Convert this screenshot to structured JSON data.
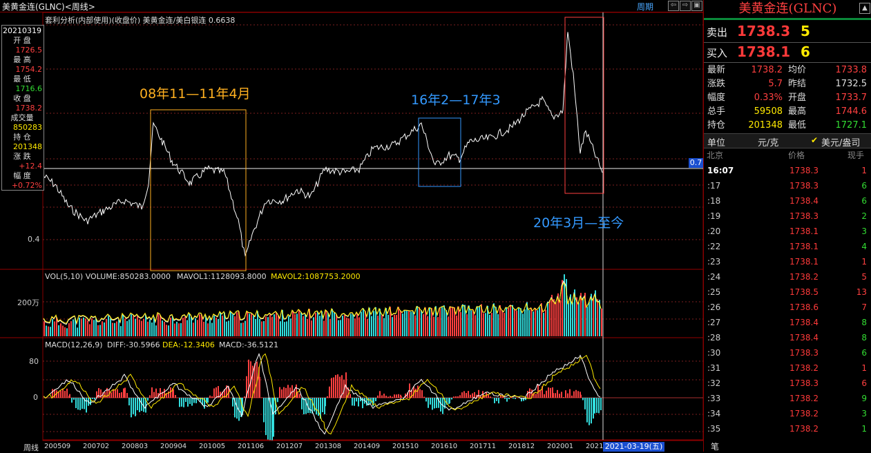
{
  "window": {
    "title": "美黄金连(GLNC)<周线>",
    "period_button": "周期",
    "nav_buttons": [
      "⇦",
      "⇨",
      "▣"
    ]
  },
  "info_panel": {
    "date": "20210319",
    "rows": [
      {
        "label": "开 盘",
        "value": "1726.5",
        "color": "#ff4040"
      },
      {
        "label": "最 高",
        "value": "1754.2",
        "color": "#ff4040"
      },
      {
        "label": "最 低",
        "value": "1716.6",
        "color": "#33dd33"
      },
      {
        "label": "收 盘",
        "value": "1738.2",
        "color": "#ff4040"
      },
      {
        "label": "成交量",
        "value": "850283",
        "color": "#ffea00"
      },
      {
        "label": "持 仓",
        "value": "201348",
        "color": "#ffea00"
      },
      {
        "label": "涨 跌",
        "value": "+12.4",
        "color": "#ff4040"
      },
      {
        "label": "幅 度",
        "value": "+0.72%",
        "color": "#ff4040"
      }
    ]
  },
  "main_chart": {
    "header": "套利分析(内部使用)(收盘价) 美黄金连/美白银连   0.6638",
    "y_label_low": "0.4",
    "current_tag": "0.7",
    "annotations": [
      {
        "text": "08年11—11年4月",
        "color": "#ffb020"
      },
      {
        "text": "16年2—17年3",
        "color": "#3399ff"
      },
      {
        "text": "20年3月—至今",
        "color": "#3399ff"
      }
    ]
  },
  "volume_chart": {
    "header_vol": "VOL(5,10) VOLUME:850283.0000",
    "header_mavol1": "MAVOL1:1128093.8000",
    "header_mavol2": "MAVOL2:1087753.2000",
    "y_label": "200万"
  },
  "macd_chart": {
    "header_name": "MACD(12,26,9)",
    "diff": "DIFF:-30.5966",
    "dea": "DEA:-12.3406",
    "macd": "MACD:-36.5121",
    "y_labels": [
      "80",
      "0"
    ]
  },
  "x_axis": {
    "corner_label": "周线",
    "ticks": [
      "200509",
      "200702",
      "200803",
      "200904",
      "201005",
      "201106",
      "201207",
      "201308",
      "201409",
      "201510",
      "201610",
      "201711",
      "201812",
      "202001",
      "20210"
    ],
    "date_flag": "2021-03-19(五)"
  },
  "quote_panel": {
    "name": "美黄金连(GLNC)",
    "sell": {
      "label": "卖出",
      "price": "1738.3",
      "volume": "5"
    },
    "buy": {
      "label": "买入",
      "price": "1738.1",
      "volume": "6"
    },
    "stats": [
      {
        "l1": "最新",
        "v1": "1738.2",
        "c1": "#ff4040",
        "l2": "均价",
        "v2": "1733.8",
        "c2": "#ff4040"
      },
      {
        "l1": "涨跌",
        "v1": "5.7",
        "c1": "#ff4040",
        "l2": "昨结",
        "v2": "1732.5",
        "c2": "#ddd"
      },
      {
        "l1": "幅度",
        "v1": "0.33%",
        "c1": "#ff4040",
        "l2": "开盘",
        "v2": "1733.7",
        "c2": "#ff4040"
      },
      {
        "l1": "总手",
        "v1": "59508",
        "c1": "#ffea00",
        "l2": "最高",
        "v2": "1744.6",
        "c2": "#ff4040"
      },
      {
        "l1": "持仓",
        "v1": "201348",
        "c1": "#ffea00",
        "l2": "最低",
        "v2": "1727.1",
        "c2": "#33dd33"
      }
    ],
    "unit_label": "单位",
    "unit_value": "元/克",
    "unit_option": "美元/盎司",
    "tick_header": {
      "time": "北京",
      "price": "价格",
      "volume": "现手"
    },
    "ticks": [
      {
        "time": "16:07",
        "price": "1738.3",
        "vol": "1",
        "vc": "#ff4040"
      },
      {
        "time": ":17",
        "price": "1738.3",
        "vol": "6",
        "vc": "#33dd33"
      },
      {
        "time": ":18",
        "price": "1738.4",
        "vol": "6",
        "vc": "#33dd33"
      },
      {
        "time": ":19",
        "price": "1738.3",
        "vol": "2",
        "vc": "#33dd33"
      },
      {
        "time": ":20",
        "price": "1738.1",
        "vol": "3",
        "vc": "#33dd33"
      },
      {
        "time": ":22",
        "price": "1738.1",
        "vol": "4",
        "vc": "#33dd33"
      },
      {
        "time": ":23",
        "price": "1738.1",
        "vol": "1",
        "vc": "#ff4040"
      },
      {
        "time": ":24",
        "price": "1738.2",
        "vol": "5",
        "vc": "#ff4040"
      },
      {
        "time": ":25",
        "price": "1738.5",
        "vol": "13",
        "vc": "#ff4040"
      },
      {
        "time": ":26",
        "price": "1738.6",
        "vol": "7",
        "vc": "#ff4040"
      },
      {
        "time": ":27",
        "price": "1738.4",
        "vol": "8",
        "vc": "#33dd33"
      },
      {
        "time": ":28",
        "price": "1738.4",
        "vol": "8",
        "vc": "#33dd33"
      },
      {
        "time": ":30",
        "price": "1738.3",
        "vol": "6",
        "vc": "#33dd33"
      },
      {
        "time": ":31",
        "price": "1738.2",
        "vol": "1",
        "vc": "#ff4040"
      },
      {
        "time": ":32",
        "price": "1738.3",
        "vol": "6",
        "vc": "#ff4040"
      },
      {
        "time": ":33",
        "price": "1738.2",
        "vol": "9",
        "vc": "#33dd33"
      },
      {
        "time": ":34",
        "price": "1738.2",
        "vol": "3",
        "vc": "#33dd33"
      },
      {
        "time": ":35",
        "price": "1738.2",
        "vol": "1",
        "vc": "#33dd33"
      }
    ],
    "bottom_label": "笔"
  },
  "colors": {
    "up": "#ff4040",
    "down": "#33dddd",
    "line": "#ffffff",
    "signal": "#ffea00",
    "grid": "#802020"
  }
}
